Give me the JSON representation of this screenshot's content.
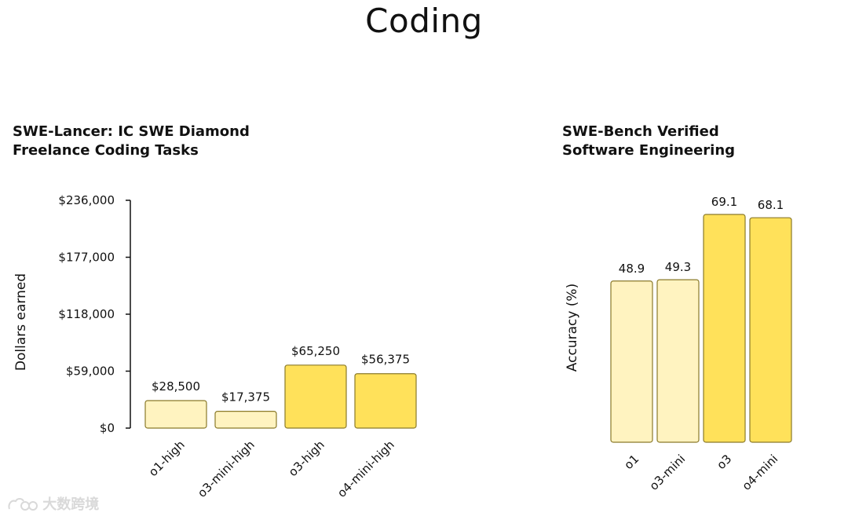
{
  "page": {
    "title": "Coding"
  },
  "watermark": {
    "text": "大数跨境"
  },
  "chart_data": [
    {
      "type": "bar",
      "title_lines": [
        "SWE-Lancer: IC SWE Diamond",
        "Freelance Coding Tasks"
      ],
      "ylabel": "Dollars earned",
      "xlabel": "",
      "ylim": [
        0,
        236000
      ],
      "yticks": [
        0,
        59000,
        118000,
        177000,
        236000
      ],
      "ytick_labels": [
        "$0",
        "$59,000",
        "$118,000",
        "$177,000",
        "$236,000"
      ],
      "categories": [
        "o1-high",
        "o3-mini-high",
        "o3-high",
        "o4-mini-high"
      ],
      "values": [
        28500,
        17375,
        65250,
        56375
      ],
      "value_labels": [
        "$28,500",
        "$17,375",
        "$65,250",
        "$56,375"
      ],
      "colors": [
        "#fff3c0",
        "#fff3c0",
        "#ffe15a",
        "#ffe15a"
      ],
      "grid": false
    },
    {
      "type": "bar",
      "title_lines": [
        "SWE-Bench Verified",
        "Software Engineering"
      ],
      "ylabel": "Accuracy (%)",
      "xlabel": "",
      "ylim": [
        0,
        69.1
      ],
      "categories": [
        "o1",
        "o3-mini",
        "o3",
        "o4-mini"
      ],
      "values": [
        48.9,
        49.3,
        69.1,
        68.1
      ],
      "value_labels": [
        "48.9",
        "49.3",
        "69.1",
        "68.1"
      ],
      "colors": [
        "#fff3c0",
        "#fff3c0",
        "#ffe15a",
        "#ffe15a"
      ],
      "grid": false
    }
  ]
}
